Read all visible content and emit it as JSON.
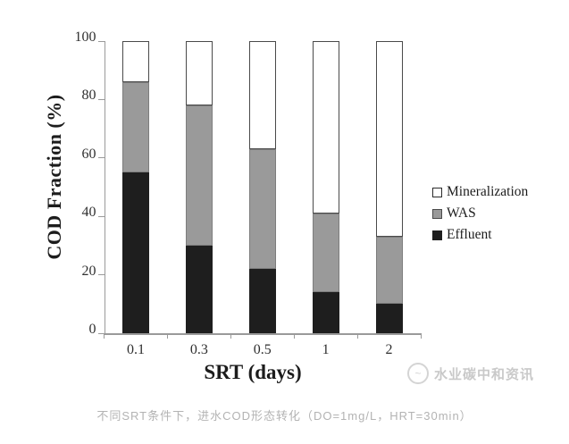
{
  "chart_data": {
    "type": "bar",
    "stacked": true,
    "title": "",
    "xlabel": "SRT (days)",
    "ylabel": "COD Fraction (%)",
    "categories": [
      "0.1",
      "0.3",
      "0.5",
      "1",
      "2"
    ],
    "series": [
      {
        "name": "Effluent",
        "color": "#1e1e1e",
        "values": [
          55,
          30,
          22,
          14,
          10
        ]
      },
      {
        "name": "WAS",
        "color": "#9a9a9a",
        "values": [
          31,
          48,
          41,
          27,
          23
        ]
      },
      {
        "name": "Mineralization",
        "color": "#ffffff",
        "values": [
          14,
          22,
          37,
          59,
          67
        ]
      }
    ],
    "ylim": [
      0,
      100
    ],
    "yticks": [
      0,
      20,
      40,
      60,
      80,
      100
    ],
    "grid": false,
    "legend_position": "right"
  },
  "legend": {
    "items": [
      {
        "label": "Mineralization"
      },
      {
        "label": "WAS"
      },
      {
        "label": "Effluent"
      }
    ]
  },
  "watermark": {
    "text": "水业碳中和资讯"
  },
  "caption": {
    "text": "不同SRT条件下，进水COD形态转化（DO=1mg/L，HRT=30min）"
  }
}
